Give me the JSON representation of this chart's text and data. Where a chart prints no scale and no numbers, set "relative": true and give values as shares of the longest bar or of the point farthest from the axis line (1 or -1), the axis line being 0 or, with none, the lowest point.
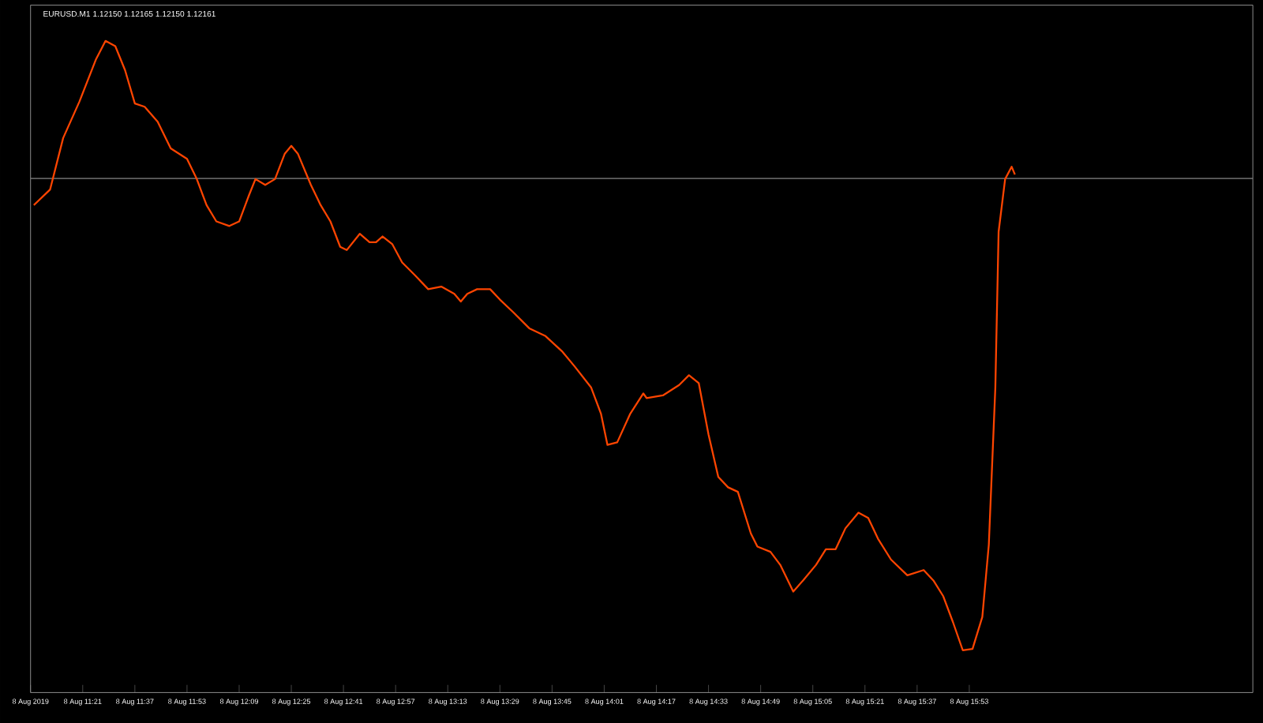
{
  "chart_data": {
    "type": "line",
    "title": "EURUSD.M1  1.12150 1.12165 1.12150 1.12161",
    "relative": true,
    "grid": false,
    "marker": "none",
    "line_style": "solid",
    "xlim": [
      "2019-08-08T11:05",
      "2019-08-08T17:20"
    ],
    "xticks": [
      {
        "value": "2019-08-08T11:05",
        "label": "8 Aug 2019"
      },
      {
        "value": "2019-08-08T11:21",
        "label": "8 Aug 11:21"
      },
      {
        "value": "2019-08-08T11:37",
        "label": "8 Aug 11:37"
      },
      {
        "value": "2019-08-08T11:53",
        "label": "8 Aug 11:53"
      },
      {
        "value": "2019-08-08T12:09",
        "label": "8 Aug 12:09"
      },
      {
        "value": "2019-08-08T12:25",
        "label": "8 Aug 12:25"
      },
      {
        "value": "2019-08-08T12:41",
        "label": "8 Aug 12:41"
      },
      {
        "value": "2019-08-08T12:57",
        "label": "8 Aug 12:57"
      },
      {
        "value": "2019-08-08T13:13",
        "label": "8 Aug 13:13"
      },
      {
        "value": "2019-08-08T13:29",
        "label": "8 Aug 13:29"
      },
      {
        "value": "2019-08-08T13:45",
        "label": "8 Aug 13:45"
      },
      {
        "value": "2019-08-08T14:01",
        "label": "8 Aug 14:01"
      },
      {
        "value": "2019-08-08T14:17",
        "label": "8 Aug 14:17"
      },
      {
        "value": "2019-08-08T14:33",
        "label": "8 Aug 14:33"
      },
      {
        "value": "2019-08-08T14:49",
        "label": "8 Aug 14:49"
      },
      {
        "value": "2019-08-08T15:05",
        "label": "8 Aug 15:05"
      },
      {
        "value": "2019-08-08T15:21",
        "label": "8 Aug 15:21"
      },
      {
        "value": "2019-08-08T15:37",
        "label": "8 Aug 15:37"
      },
      {
        "value": "2019-08-08T15:53",
        "label": "8 Aug 15:53"
      }
    ],
    "ref_lines": [
      {
        "axis": "y",
        "value": 0.789,
        "color": "#808080"
      }
    ],
    "series": [
      {
        "color": "#ff4500",
        "x": [
          "2019-08-08T11:06",
          "2019-08-08T11:11",
          "2019-08-08T11:15",
          "2019-08-08T11:20",
          "2019-08-08T11:25",
          "2019-08-08T11:28",
          "2019-08-08T11:31",
          "2019-08-08T11:34",
          "2019-08-08T11:37",
          "2019-08-08T11:40",
          "2019-08-08T11:44",
          "2019-08-08T11:48",
          "2019-08-08T11:53",
          "2019-08-08T11:56",
          "2019-08-08T11:59",
          "2019-08-08T12:02",
          "2019-08-08T12:06",
          "2019-08-08T12:09",
          "2019-08-08T12:12",
          "2019-08-08T12:14",
          "2019-08-08T12:17",
          "2019-08-08T12:20",
          "2019-08-08T12:23",
          "2019-08-08T12:25",
          "2019-08-08T12:27",
          "2019-08-08T12:31",
          "2019-08-08T12:34",
          "2019-08-08T12:37",
          "2019-08-08T12:40",
          "2019-08-08T12:42",
          "2019-08-08T12:46",
          "2019-08-08T12:49",
          "2019-08-08T12:51",
          "2019-08-08T12:53",
          "2019-08-08T12:56",
          "2019-08-08T12:59",
          "2019-08-08T13:03",
          "2019-08-08T13:07",
          "2019-08-08T13:11",
          "2019-08-08T13:15",
          "2019-08-08T13:17",
          "2019-08-08T13:19",
          "2019-08-08T13:22",
          "2019-08-08T13:26",
          "2019-08-08T13:29",
          "2019-08-08T13:33",
          "2019-08-08T13:38",
          "2019-08-08T13:43",
          "2019-08-08T13:48",
          "2019-08-08T13:52",
          "2019-08-08T13:57",
          "2019-08-08T14:00",
          "2019-08-08T14:02",
          "2019-08-08T14:05",
          "2019-08-08T14:09",
          "2019-08-08T14:13",
          "2019-08-08T14:14",
          "2019-08-08T14:19",
          "2019-08-08T14:24",
          "2019-08-08T14:27",
          "2019-08-08T14:30",
          "2019-08-08T14:33",
          "2019-08-08T14:36",
          "2019-08-08T14:39",
          "2019-08-08T14:42",
          "2019-08-08T14:46",
          "2019-08-08T14:48",
          "2019-08-08T14:52",
          "2019-08-08T14:55",
          "2019-08-08T14:59",
          "2019-08-08T15:02",
          "2019-08-08T15:06",
          "2019-08-08T15:09",
          "2019-08-08T15:12",
          "2019-08-08T15:15",
          "2019-08-08T15:19",
          "2019-08-08T15:22",
          "2019-08-08T15:25",
          "2019-08-08T15:29",
          "2019-08-08T15:34",
          "2019-08-08T15:39",
          "2019-08-08T15:42",
          "2019-08-08T15:45",
          "2019-08-08T15:48",
          "2019-08-08T15:51",
          "2019-08-08T15:54",
          "2019-08-08T15:57",
          "2019-08-08T15:59",
          "2019-08-08T16:01",
          "2019-08-08T16:02",
          "2019-08-08T16:04",
          "2019-08-08T16:06",
          "2019-08-08T16:07"
        ],
        "values": [
          0.748,
          0.772,
          0.851,
          0.907,
          0.971,
          1.0,
          0.992,
          0.955,
          0.904,
          0.899,
          0.876,
          0.835,
          0.819,
          0.788,
          0.748,
          0.723,
          0.716,
          0.723,
          0.763,
          0.788,
          0.779,
          0.788,
          0.827,
          0.839,
          0.827,
          0.779,
          0.748,
          0.723,
          0.684,
          0.679,
          0.704,
          0.691,
          0.691,
          0.7,
          0.688,
          0.66,
          0.64,
          0.619,
          0.623,
          0.612,
          0.6,
          0.612,
          0.619,
          0.619,
          0.603,
          0.584,
          0.559,
          0.547,
          0.524,
          0.5,
          0.468,
          0.428,
          0.38,
          0.384,
          0.428,
          0.459,
          0.452,
          0.456,
          0.472,
          0.487,
          0.475,
          0.396,
          0.331,
          0.315,
          0.308,
          0.244,
          0.224,
          0.216,
          0.196,
          0.155,
          0.172,
          0.196,
          0.22,
          0.22,
          0.252,
          0.276,
          0.268,
          0.236,
          0.204,
          0.18,
          0.188,
          0.172,
          0.148,
          0.108,
          0.065,
          0.067,
          0.116,
          0.227,
          0.468,
          0.707,
          0.788,
          0.807,
          0.795
        ]
      }
    ]
  }
}
